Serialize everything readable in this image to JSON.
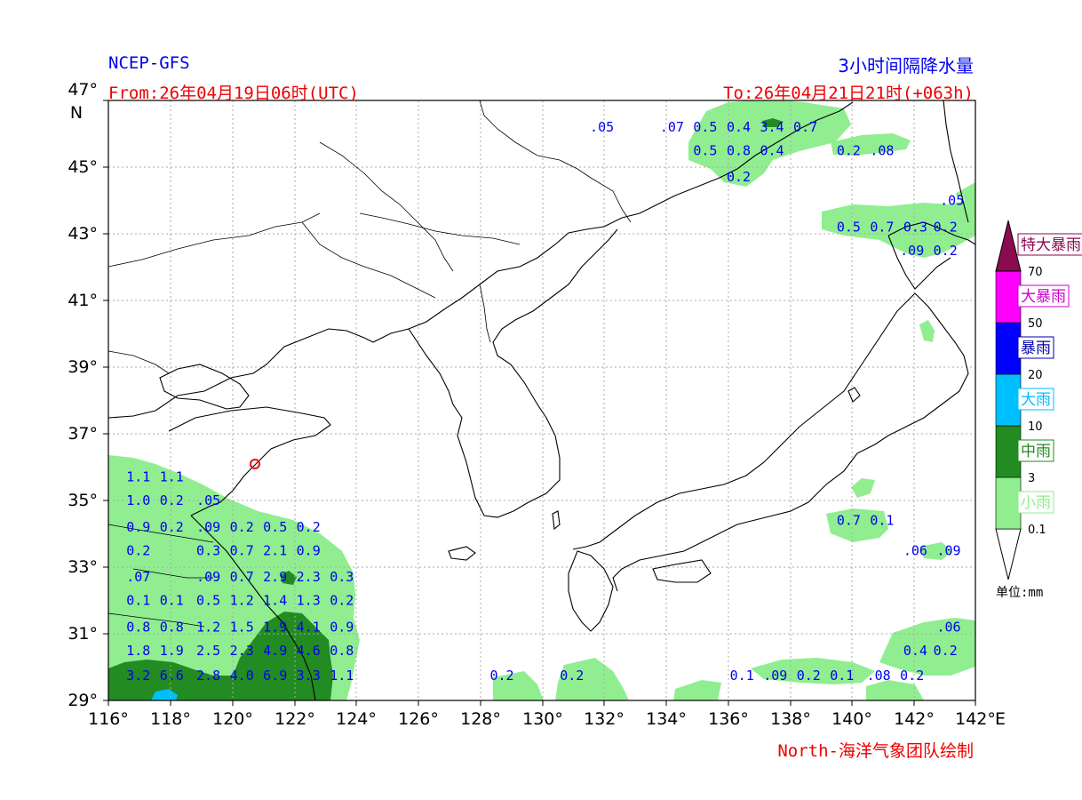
{
  "header": {
    "model": "NCEP-GFS",
    "title": "3小时间隔降水量",
    "from": "From:26年04月19日06时(UTC)",
    "to": "To:26年04月21日21时(+063h)"
  },
  "credit": "North-海洋气象团队绘制",
  "axes": {
    "lon_ticks": [
      "116°",
      "118°",
      "120°",
      "122°",
      "124°",
      "126°",
      "128°",
      "130°",
      "132°",
      "134°",
      "136°",
      "138°",
      "140°",
      "142°"
    ],
    "lat_ticks": [
      "47°",
      "45°",
      "43°",
      "41°",
      "39°",
      "37°",
      "35°",
      "33°",
      "31°",
      "29°"
    ],
    "lon_unit": "E",
    "lat_unit": "N"
  },
  "colors": {
    "light_rain": "#90ee90",
    "moderate_rain": "#228b22",
    "heavy_rain": "#00bfff",
    "rainstorm": "#0000ff",
    "heavy_rainstorm": "#ff00ff",
    "extreme_rainstorm": "#8b0a50"
  },
  "legend": {
    "categories": [
      {
        "label": "小雨",
        "color": "#90ee90",
        "text_color": "#90ee90"
      },
      {
        "label": "中雨",
        "color": "#228b22",
        "text_color": "#228b22"
      },
      {
        "label": "大雨",
        "color": "#00bfff",
        "text_color": "#00bfff"
      },
      {
        "label": "暴雨",
        "color": "#0000ff",
        "text_color": "#0000aa"
      },
      {
        "label": "大暴雨",
        "color": "#ff00ff",
        "text_color": "#cc00cc"
      },
      {
        "label": "特大暴雨",
        "color": "#8b0a50",
        "text_color": "#8b0a50"
      }
    ],
    "thresholds": [
      "0.1",
      "3",
      "10",
      "20",
      "50",
      "70"
    ],
    "unit": "单位:mm"
  },
  "values": [
    {
      "text": ".05",
      "lon": 130.8,
      "lat": 46.2
    },
    {
      "text": ".07",
      "lon": 132.9,
      "lat": 46.2
    },
    {
      "text": "0.5",
      "lon": 133.9,
      "lat": 46.2
    },
    {
      "text": "0.4",
      "lon": 134.9,
      "lat": 46.2
    },
    {
      "text": "3.4",
      "lon": 135.9,
      "lat": 46.2
    },
    {
      "text": "0.7",
      "lon": 136.9,
      "lat": 46.2
    },
    {
      "text": "0.5",
      "lon": 133.9,
      "lat": 45.5
    },
    {
      "text": "0.8",
      "lon": 134.9,
      "lat": 45.5
    },
    {
      "text": "0.4",
      "lon": 135.9,
      "lat": 45.5
    },
    {
      "text": "0.2",
      "lon": 138.2,
      "lat": 45.5
    },
    {
      "text": ".08",
      "lon": 139.2,
      "lat": 45.5
    },
    {
      "text": "0.2",
      "lon": 134.9,
      "lat": 44.7
    },
    {
      "text": ".05",
      "lon": 141.3,
      "lat": 44.0
    },
    {
      "text": "0.5",
      "lon": 138.2,
      "lat": 43.2
    },
    {
      "text": "0.7",
      "lon": 139.2,
      "lat": 43.2
    },
    {
      "text": "0.3",
      "lon": 140.2,
      "lat": 43.2
    },
    {
      "text": "0.2",
      "lon": 141.1,
      "lat": 43.2
    },
    {
      "text": ".09",
      "lon": 140.1,
      "lat": 42.5
    },
    {
      "text": "0.2",
      "lon": 141.1,
      "lat": 42.5
    },
    {
      "text": "1.1",
      "lon": 116.9,
      "lat": 35.7
    },
    {
      "text": "1.1",
      "lon": 117.9,
      "lat": 35.7
    },
    {
      "text": "1.0",
      "lon": 116.9,
      "lat": 35.0
    },
    {
      "text": "0.2",
      "lon": 117.9,
      "lat": 35.0
    },
    {
      "text": ".05",
      "lon": 119.0,
      "lat": 35.0
    },
    {
      "text": "0.9",
      "lon": 116.9,
      "lat": 34.2
    },
    {
      "text": "0.2",
      "lon": 117.9,
      "lat": 34.2
    },
    {
      "text": ".09",
      "lon": 119.0,
      "lat": 34.2
    },
    {
      "text": "0.2",
      "lon": 120.0,
      "lat": 34.2
    },
    {
      "text": "0.5",
      "lon": 121.0,
      "lat": 34.2
    },
    {
      "text": "0.2",
      "lon": 122.0,
      "lat": 34.2
    },
    {
      "text": "0.2",
      "lon": 116.9,
      "lat": 33.5
    },
    {
      "text": "0.3",
      "lon": 119.0,
      "lat": 33.5
    },
    {
      "text": "0.7",
      "lon": 120.0,
      "lat": 33.5
    },
    {
      "text": "2.1",
      "lon": 121.0,
      "lat": 33.5
    },
    {
      "text": "0.9",
      "lon": 122.0,
      "lat": 33.5
    },
    {
      "text": ".07",
      "lon": 116.9,
      "lat": 32.7
    },
    {
      "text": ".09",
      "lon": 119.0,
      "lat": 32.7
    },
    {
      "text": "0.7",
      "lon": 120.0,
      "lat": 32.7
    },
    {
      "text": "2.9",
      "lon": 121.0,
      "lat": 32.7
    },
    {
      "text": "2.3",
      "lon": 122.0,
      "lat": 32.7
    },
    {
      "text": "0.3",
      "lon": 123.0,
      "lat": 32.7
    },
    {
      "text": "0.1",
      "lon": 116.9,
      "lat": 32.0
    },
    {
      "text": "0.1",
      "lon": 117.9,
      "lat": 32.0
    },
    {
      "text": "0.5",
      "lon": 119.0,
      "lat": 32.0
    },
    {
      "text": "1.2",
      "lon": 120.0,
      "lat": 32.0
    },
    {
      "text": "1.4",
      "lon": 121.0,
      "lat": 32.0
    },
    {
      "text": "1.3",
      "lon": 122.0,
      "lat": 32.0
    },
    {
      "text": "0.2",
      "lon": 123.0,
      "lat": 32.0
    },
    {
      "text": "0.8",
      "lon": 116.9,
      "lat": 31.2
    },
    {
      "text": "0.8",
      "lon": 117.9,
      "lat": 31.2
    },
    {
      "text": "1.2",
      "lon": 119.0,
      "lat": 31.2
    },
    {
      "text": "1.5",
      "lon": 120.0,
      "lat": 31.2
    },
    {
      "text": "1.9",
      "lon": 121.0,
      "lat": 31.2
    },
    {
      "text": "4.1",
      "lon": 122.0,
      "lat": 31.2
    },
    {
      "text": "0.9",
      "lon": 123.0,
      "lat": 31.2
    },
    {
      "text": "1.8",
      "lon": 116.9,
      "lat": 30.5
    },
    {
      "text": "1.9",
      "lon": 117.9,
      "lat": 30.5
    },
    {
      "text": "2.5",
      "lon": 119.0,
      "lat": 30.5
    },
    {
      "text": "2.3",
      "lon": 120.0,
      "lat": 30.5
    },
    {
      "text": "4.9",
      "lon": 121.0,
      "lat": 30.5
    },
    {
      "text": "4.6",
      "lon": 122.0,
      "lat": 30.5
    },
    {
      "text": "0.8",
      "lon": 123.0,
      "lat": 30.5
    },
    {
      "text": "0.4",
      "lon": 140.2,
      "lat": 30.5
    },
    {
      "text": "0.2",
      "lon": 141.1,
      "lat": 30.5
    },
    {
      "text": ".06",
      "lon": 141.2,
      "lat": 31.2
    },
    {
      "text": "3.2",
      "lon": 116.9,
      "lat": 29.75
    },
    {
      "text": "6.6",
      "lon": 117.9,
      "lat": 29.75
    },
    {
      "text": "2.8",
      "lon": 119.0,
      "lat": 29.75
    },
    {
      "text": "4.0",
      "lon": 120.0,
      "lat": 29.75
    },
    {
      "text": "6.9",
      "lon": 121.0,
      "lat": 29.75
    },
    {
      "text": "3.3",
      "lon": 122.0,
      "lat": 29.75
    },
    {
      "text": "1.1",
      "lon": 123.0,
      "lat": 29.75
    },
    {
      "text": "0.2",
      "lon": 127.8,
      "lat": 29.75
    },
    {
      "text": "0.2",
      "lon": 129.9,
      "lat": 29.75
    },
    {
      "text": "0.1",
      "lon": 135.0,
      "lat": 29.75
    },
    {
      "text": ".09",
      "lon": 136.0,
      "lat": 29.75
    },
    {
      "text": "0.2",
      "lon": 137.0,
      "lat": 29.75
    },
    {
      "text": "0.1",
      "lon": 138.0,
      "lat": 29.75
    },
    {
      "text": ".08",
      "lon": 139.1,
      "lat": 29.75
    },
    {
      "text": "0.2",
      "lon": 140.1,
      "lat": 29.75
    },
    {
      "text": "0.7",
      "lon": 138.2,
      "lat": 34.4
    },
    {
      "text": "0.1",
      "lon": 139.2,
      "lat": 34.4
    },
    {
      "text": ".06",
      "lon": 140.2,
      "lat": 33.5
    },
    {
      "text": ".09",
      "lon": 141.2,
      "lat": 33.5
    }
  ]
}
